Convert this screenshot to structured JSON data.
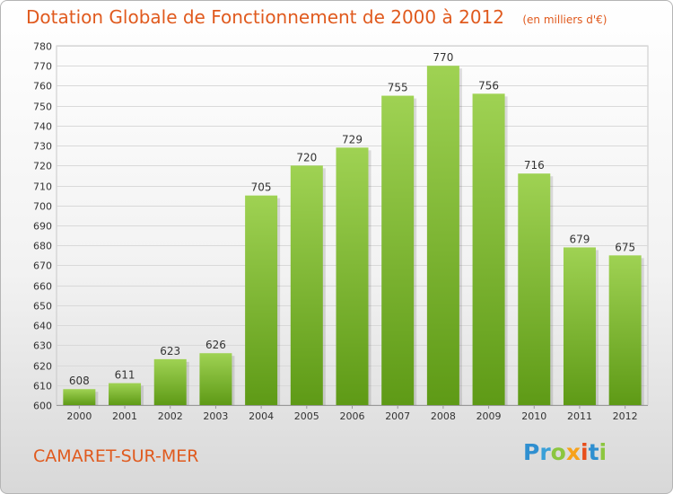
{
  "title": "Dotation Globale de Fonctionnement de 2000 à 2012",
  "unit": "(en milliers d'€)",
  "commune": "CAMARET-SUR-MER",
  "logo": "Proxiti",
  "colors": {
    "bar_light": "#9fd253",
    "bar_dark": "#5e9a16",
    "title": "#e05a1e"
  },
  "chart_data": {
    "type": "bar",
    "title": "Dotation Globale de Fonctionnement de 2000 à 2012",
    "subtitle": "(en milliers d'€)",
    "categories": [
      "2000",
      "2001",
      "2002",
      "2003",
      "2004",
      "2005",
      "2006",
      "2007",
      "2008",
      "2009",
      "2010",
      "2011",
      "2012"
    ],
    "values": [
      608,
      611,
      623,
      626,
      705,
      720,
      729,
      755,
      770,
      756,
      716,
      679,
      675
    ],
    "ylim": [
      600,
      780
    ],
    "yticks": [
      600,
      610,
      620,
      630,
      640,
      650,
      660,
      670,
      680,
      690,
      700,
      710,
      720,
      730,
      740,
      750,
      760,
      770,
      780
    ],
    "grid": true,
    "xlabel": "",
    "ylabel": ""
  }
}
